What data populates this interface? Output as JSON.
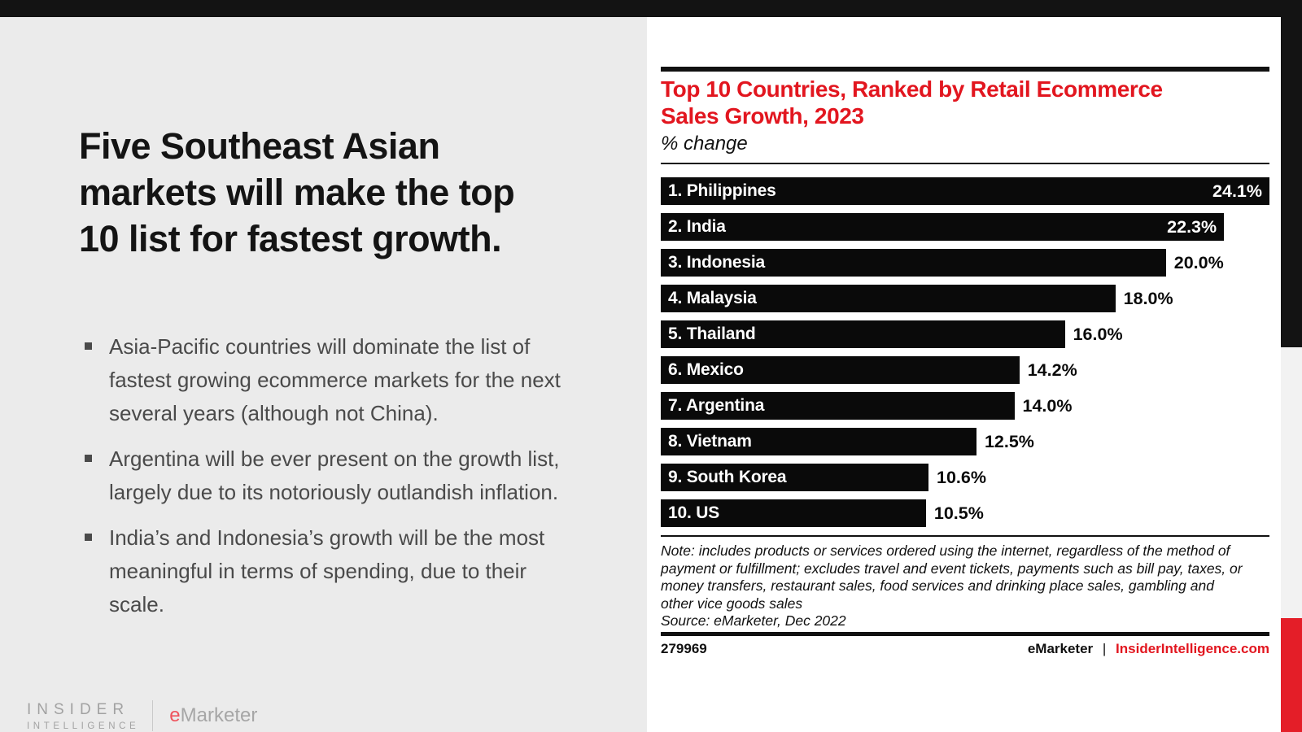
{
  "colors": {
    "accent_red": "#e2161f",
    "bar_black": "#0a0a0a",
    "left_panel_gray": "#ebebeb",
    "edge_strip_red": "#e41e28",
    "bullet_text_gray": "#4a4a4a"
  },
  "slide": {
    "headline_lines": [
      "Five Southeast Asian",
      "markets will make the top",
      "10 list for fastest growth."
    ],
    "bullets": [
      "Asia-Pacific countries will dominate the list of fastest growing ecommerce markets for the next several years (although not China).",
      "Argentina will be ever present on the growth list, largely due to its notoriously outlandish inflation.",
      "India’s and Indonesia’s growth will be the most meaningful in terms of spending, due to their scale."
    ],
    "branding": {
      "insider_line1": "INSIDER",
      "insider_line2": "INTELLIGENCE",
      "emarketer_e": "e",
      "emarketer_rest": "Marketer"
    }
  },
  "chart": {
    "title_lines": [
      "Top 10 Countries, Ranked by Retail Ecommerce",
      "Sales Growth, 2023"
    ],
    "subtitle": "% change",
    "note_lines": [
      "Note: includes products or services ordered using the internet, regardless of the method of",
      "payment or fulfillment; excludes travel and event tickets, payments such as bill pay, taxes, or",
      "money transfers, restaurant sales, food services and drinking place sales, gambling and",
      "other vice goods sales",
      "Source: eMarketer, Dec 2022"
    ],
    "footer": {
      "id": "279969",
      "brand": "eMarketer",
      "separator": "|",
      "site": "InsiderIntelligence.com"
    }
  },
  "chart_data": {
    "type": "bar",
    "orientation": "horizontal",
    "title": "Top 10 Countries, Ranked by Retail Ecommerce Sales Growth, 2023",
    "xlabel": "% change",
    "ylabel": "",
    "xlim": [
      0,
      24.1
    ],
    "grid": false,
    "legend": false,
    "categories": [
      "1. Philippines",
      "2. India",
      "3. Indonesia",
      "4. Malaysia",
      "5. Thailand",
      "6. Mexico",
      "7. Argentina",
      "8. Vietnam",
      "9. South Korea",
      "10. US"
    ],
    "values": [
      24.1,
      22.3,
      20.0,
      18.0,
      16.0,
      14.2,
      14.0,
      12.5,
      10.6,
      10.5
    ],
    "labels": [
      "24.1%",
      "22.3%",
      "20.0%",
      "18.0%",
      "16.0%",
      "14.2%",
      "14.0%",
      "12.5%",
      "10.6%",
      "10.5%"
    ],
    "value_inside": [
      true,
      true,
      false,
      false,
      false,
      false,
      false,
      false,
      false,
      false
    ]
  }
}
